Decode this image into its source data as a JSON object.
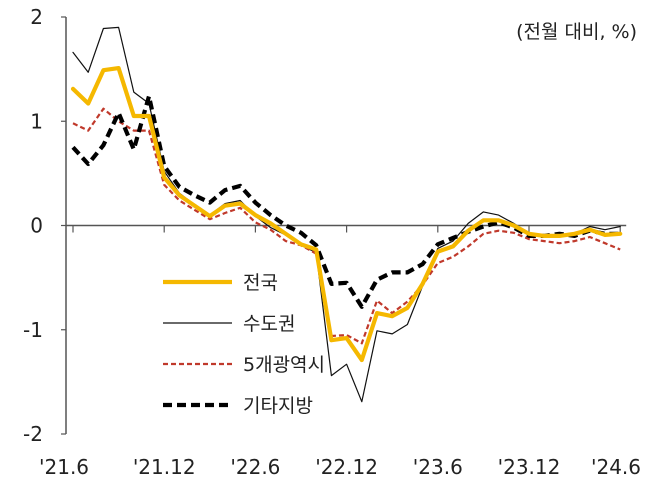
{
  "chart_data": {
    "type": "line",
    "unit_note": "(전월 대비, %)",
    "ylim": [
      -2,
      2
    ],
    "yticks": [
      {
        "value": 2,
        "label": "2"
      },
      {
        "value": 1,
        "label": "1"
      },
      {
        "value": 0,
        "label": "0"
      },
      {
        "value": -1,
        "label": "-1"
      },
      {
        "value": -2,
        "label": "-2"
      }
    ],
    "xticks": [
      {
        "index": 0,
        "label": "'21.6"
      },
      {
        "index": 6,
        "label": "'21.12"
      },
      {
        "index": 12,
        "label": "'22.6"
      },
      {
        "index": 18,
        "label": "'22.12"
      },
      {
        "index": 24,
        "label": "'23.6"
      },
      {
        "index": 30,
        "label": "'23.12"
      },
      {
        "index": 36,
        "label": "'24.6"
      }
    ],
    "x": [
      "'21.6",
      "'21.7",
      "'21.8",
      "'21.9",
      "'21.10",
      "'21.11",
      "'21.12",
      "'22.1",
      "'22.2",
      "'22.3",
      "'22.4",
      "'22.5",
      "'22.6",
      "'22.7",
      "'22.8",
      "'22.9",
      "'22.10",
      "'22.11",
      "'22.12",
      "'23.1",
      "'23.2",
      "'23.3",
      "'23.4",
      "'23.5",
      "'23.6",
      "'23.7",
      "'23.8",
      "'23.9",
      "'23.10",
      "'23.11",
      "'23.12",
      "'24.1",
      "'24.2",
      "'24.3",
      "'24.4",
      "'24.5",
      "'24.6"
    ],
    "legend_position": "left-center",
    "grid": false,
    "series": [
      {
        "name": "전국",
        "color": "#f5b800",
        "style": "solid-thick",
        "values": [
          1.31,
          1.17,
          1.49,
          1.51,
          1.05,
          1.05,
          0.46,
          0.29,
          0.19,
          0.09,
          0.19,
          0.21,
          0.1,
          0.02,
          -0.08,
          -0.18,
          -0.23,
          -1.1,
          -1.08,
          -1.29,
          -0.84,
          -0.87,
          -0.79,
          -0.56,
          -0.25,
          -0.2,
          -0.05,
          0.05,
          0.05,
          0.0,
          -0.08,
          -0.1,
          -0.1,
          -0.08,
          -0.04,
          -0.09,
          -0.08
        ]
      },
      {
        "name": "수도권",
        "color": "#111111",
        "style": "solid-thin",
        "values": [
          1.66,
          1.47,
          1.89,
          1.9,
          1.28,
          1.17,
          0.52,
          0.31,
          0.2,
          0.1,
          0.21,
          0.24,
          0.09,
          -0.02,
          -0.09,
          -0.19,
          -0.26,
          -1.44,
          -1.33,
          -1.69,
          -1.01,
          -1.04,
          -0.95,
          -0.58,
          -0.22,
          -0.15,
          0.02,
          0.13,
          0.1,
          0.02,
          -0.08,
          -0.1,
          -0.1,
          -0.08,
          -0.01,
          -0.04,
          -0.01
        ]
      },
      {
        "name": "5개광역시",
        "color": "#c0392b",
        "style": "dashed",
        "values": [
          0.98,
          0.91,
          1.12,
          1.0,
          0.91,
          0.91,
          0.39,
          0.24,
          0.15,
          0.06,
          0.12,
          0.17,
          0.03,
          -0.04,
          -0.15,
          -0.19,
          -0.27,
          -1.06,
          -1.05,
          -1.13,
          -0.72,
          -0.84,
          -0.73,
          -0.57,
          -0.36,
          -0.3,
          -0.2,
          -0.08,
          -0.05,
          -0.07,
          -0.13,
          -0.15,
          -0.17,
          -0.15,
          -0.11,
          -0.17,
          -0.23
        ]
      },
      {
        "name": "기타지방",
        "color": "#000000",
        "style": "dashed-thick",
        "values": [
          0.75,
          0.59,
          0.77,
          1.08,
          0.73,
          1.24,
          0.57,
          0.37,
          0.29,
          0.22,
          0.34,
          0.38,
          0.22,
          0.1,
          0.0,
          -0.07,
          -0.19,
          -0.56,
          -0.55,
          -0.78,
          -0.52,
          -0.45,
          -0.45,
          -0.37,
          -0.18,
          -0.12,
          -0.06,
          -0.01,
          0.03,
          -0.02,
          -0.1,
          -0.1,
          -0.08,
          -0.1,
          -0.05,
          -0.08,
          -0.08
        ]
      }
    ]
  }
}
